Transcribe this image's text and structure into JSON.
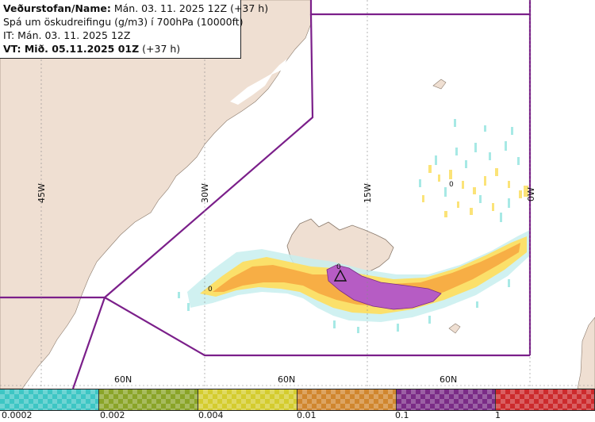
{
  "header": {
    "line1_bold": "Veðurstofan/Name:",
    "line1_rest": " Mán. 03. 11. 2025 12Z (+37 h)",
    "line2": "Spá um öskudreifingu (g/m3) í 700hPa (10000ft)",
    "line3": "IT: Mán. 03. 11. 2025 12Z",
    "line4_bold": "VT: Mið. 05.11.2025 01Z",
    "line4_rest": " (+37 h)"
  },
  "graticule": {
    "lon_labels": [
      "45W",
      "30W",
      "15W",
      "0W"
    ],
    "lat_labels": [
      "60N",
      "60N",
      "60N"
    ]
  },
  "contour_labels": [
    "0",
    "0",
    "0"
  ],
  "colorbar": {
    "colors": [
      "#3dc6c4",
      "#8aa428",
      "#d4cc2e",
      "#d0862e",
      "#7a2b86",
      "#cc2a2c"
    ],
    "tick_labels": [
      "0.0002",
      "0.002",
      "0.004",
      "0.01",
      "0.1",
      "1"
    ]
  },
  "colors": {
    "land": "#efdfd2",
    "ocean": "#ffffff",
    "fir_boundary": "#7b1f8a",
    "plume_light": "#fbe06a",
    "plume_orange": "#f7ae45",
    "plume_purple": "#b65cc4",
    "plume_cyan": "#9ee7e3"
  }
}
